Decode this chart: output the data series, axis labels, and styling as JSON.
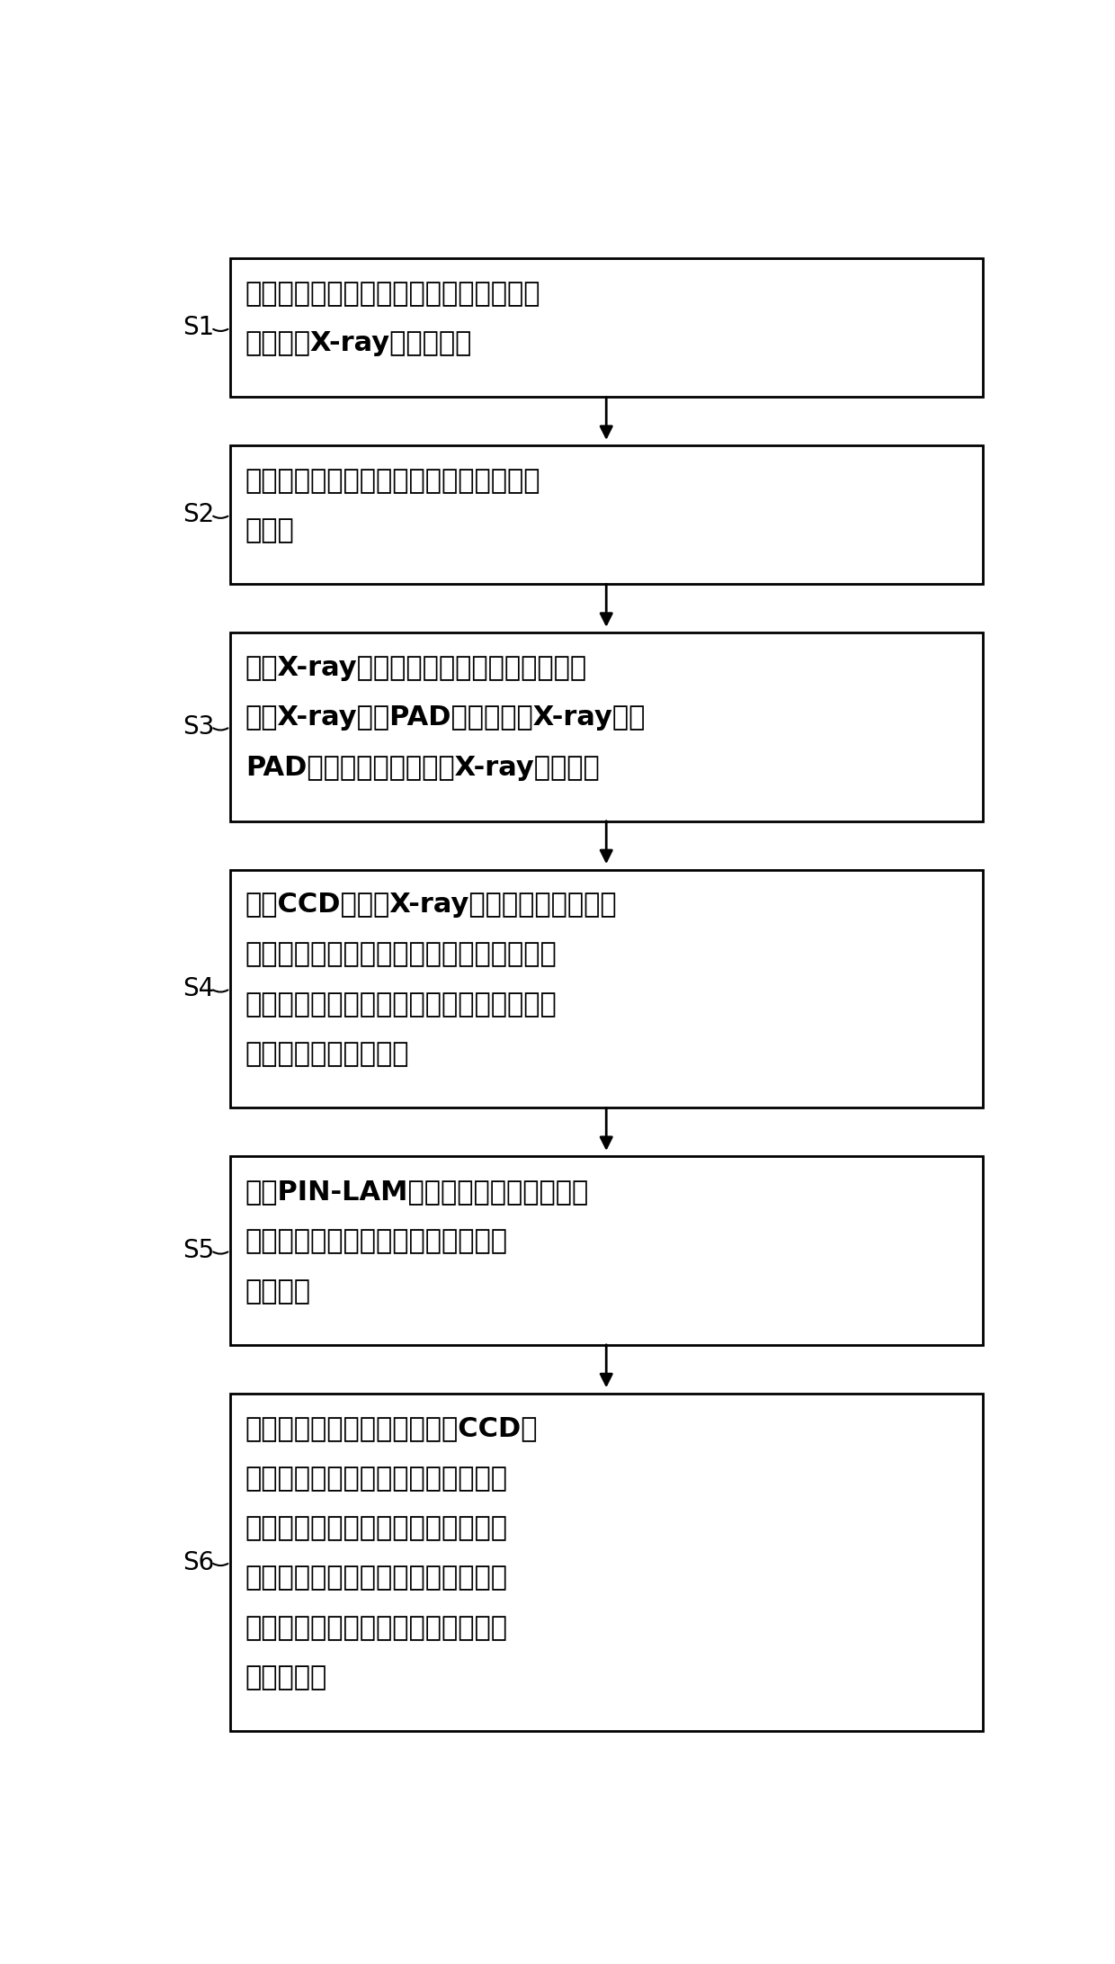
{
  "bg_color": "#ffffff",
  "box_color": "#ffffff",
  "box_edge_color": "#000000",
  "text_color": "#000000",
  "arrow_color": "#000000",
  "label_color": "#000000",
  "font_size": 22,
  "label_font_size": 20,
  "steps": [
    {
      "id": "S1",
      "label": "S1",
      "lines": [
        "提供若干芯板制作内层图形，在每一芯板",
        "板边增加X-ray对位标靶。"
      ]
    },
    {
      "id": "S2",
      "label": "S2",
      "lines": [
        "将若干芯板进行压合制得子板，制取两块",
        "子板。"
      ]
    },
    {
      "id": "S3",
      "label": "S3",
      "lines": [
        "通过X-ray钻靶机，参考芯板每个角对应位",
        "置的X-ray对位PAD，根据若干X-ray对位",
        "PAD的算取中心点后钻出X-ray标靶孔。"
      ]
    },
    {
      "id": "S4",
      "label": "S4",
      "lines": [
        "采用CCD钻机抓X-ray标靶孔对位，按自动",
        "拉伸补偿方式确定子板板面钻孔位置并钻子",
        "板压接通孔；同时在钻孔时在子板板角位置",
        "增加钻设母板对位孔。"
      ]
    },
    {
      "id": "S5",
      "label": "S5",
      "lines": [
        "采用PIN-LAM结合销钉层压叠加方式将",
        "两子板进行压板，在两子板间形成有",
        "光芯板。"
      ]
    },
    {
      "id": "S6",
      "label": "S6",
      "lines": [
        "母板钻孔以压接器面向为准，CCD钻",
        "机以四个定位孔进行扫描定位自动拉",
        "伸对上侧子板或下侧子板分别钻母板",
        "压接通孔，以配合子板压接孔形成一",
        "压接器插孔，以在插入时导通两子板",
        "内的电路。"
      ]
    }
  ]
}
